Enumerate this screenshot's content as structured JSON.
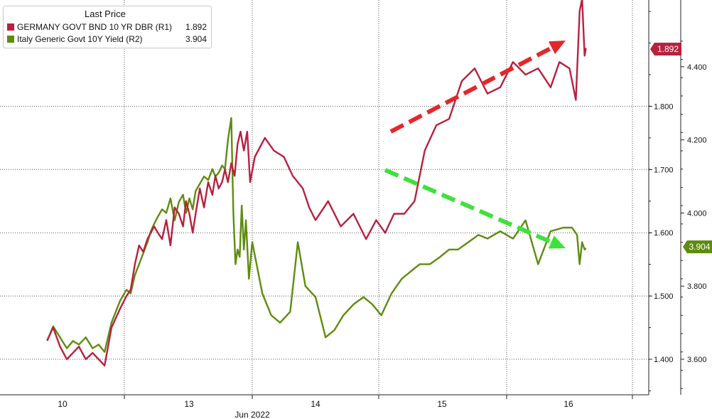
{
  "legend": {
    "title": "Last Price",
    "items": [
      {
        "label": "GERMANY GOVT BND 10 YR DBR  (R1)",
        "value": "1.892",
        "color": "#b8213e"
      },
      {
        "label": "Italy Generic Govt 10Y Yield  (R2)",
        "value": "3.904",
        "color": "#5e8c0f"
      }
    ]
  },
  "chart_data": {
    "type": "line",
    "xlabel": "Jun 2022",
    "x_ticks": [
      "10",
      "13",
      "14",
      "15",
      "16"
    ],
    "grid": true,
    "axes": {
      "R1": {
        "ticks": [
          "1.400",
          "1.500",
          "1.600",
          "1.700",
          "1.800"
        ],
        "range": [
          1.35,
          1.975
        ]
      },
      "R2": {
        "ticks": [
          "3.600",
          "3.800",
          "4.000",
          "4.200",
          "4.400"
        ],
        "range": [
          3.51,
          4.51
        ]
      }
    },
    "series": [
      {
        "name": "GERMANY GOVT BND 10 YR DBR  (R1)",
        "axis": "R1",
        "color": "#b8213e",
        "last_value": "1.892",
        "x": [
          9.55,
          9.62,
          9.7,
          9.78,
          9.85,
          9.92,
          10.0,
          10.08,
          10.15,
          10.22,
          10.3,
          10.4,
          10.5,
          10.6,
          10.7,
          10.8,
          10.9,
          11.0,
          11.08,
          11.16,
          11.25,
          11.35,
          11.45,
          11.55,
          11.65,
          11.75,
          11.85,
          11.92,
          12.0,
          12.08,
          12.15,
          12.25,
          12.35,
          12.45,
          12.55,
          12.62,
          12.7,
          12.78,
          12.85,
          12.92,
          13.0,
          13.08,
          13.15,
          13.22,
          13.3,
          13.38,
          13.45,
          13.52,
          13.6,
          13.67,
          13.75,
          13.82,
          13.9,
          13.95,
          14.0,
          14.1,
          14.2,
          14.3,
          14.4,
          14.48,
          14.55,
          14.62,
          14.7,
          14.78,
          14.86,
          14.95,
          15.05,
          15.15,
          15.25,
          15.35,
          15.45,
          15.55,
          15.65,
          15.75,
          15.85,
          15.92,
          16.0,
          16.05,
          16.08,
          16.1,
          16.12,
          16.13
        ],
        "values": [
          1.43,
          1.45,
          1.42,
          1.4,
          1.41,
          1.42,
          1.4,
          1.41,
          1.4,
          1.39,
          1.45,
          1.48,
          1.5,
          1.51,
          1.55,
          1.58,
          1.57,
          1.59,
          1.6,
          1.61,
          1.6,
          1.59,
          1.62,
          1.58,
          1.64,
          1.63,
          1.61,
          1.65,
          1.63,
          1.6,
          1.63,
          1.67,
          1.64,
          1.68,
          1.66,
          1.69,
          1.67,
          1.68,
          1.7,
          1.68,
          1.71,
          1.69,
          1.74,
          1.76,
          1.73,
          1.76,
          1.68,
          1.72,
          1.75,
          1.73,
          1.72,
          1.69,
          1.67,
          1.64,
          1.62,
          1.65,
          1.61,
          1.63,
          1.59,
          1.62,
          1.6,
          1.63,
          1.63,
          1.65,
          1.73,
          1.77,
          1.78,
          1.84,
          1.86,
          1.82,
          1.83,
          1.87,
          1.85,
          1.86,
          1.83,
          1.87,
          1.86,
          1.81,
          1.95,
          1.97,
          1.88,
          1.892
        ]
      },
      {
        "name": "Italy Generic Govt 10Y Yield  (R2)",
        "axis": "R2",
        "color": "#5e8c0f",
        "last_value": "3.904",
        "x": [
          9.55,
          9.62,
          9.7,
          9.78,
          9.85,
          9.92,
          10.0,
          10.08,
          10.15,
          10.22,
          10.3,
          10.4,
          10.5,
          10.6,
          10.7,
          10.8,
          10.9,
          11.0,
          11.08,
          11.16,
          11.25,
          11.35,
          11.45,
          11.55,
          11.65,
          11.75,
          11.85,
          11.92,
          12.0,
          12.08,
          12.15,
          12.25,
          12.35,
          12.45,
          12.55,
          12.62,
          12.7,
          12.78,
          12.85,
          12.92,
          13.0,
          13.05,
          13.1,
          13.15,
          13.2,
          13.25,
          13.3,
          13.35,
          13.42,
          13.5,
          13.58,
          13.65,
          13.72,
          13.8,
          13.86,
          13.92,
          14.0,
          14.08,
          14.15,
          14.22,
          14.3,
          14.38,
          14.45,
          14.52,
          14.6,
          14.68,
          14.75,
          14.82,
          14.9,
          14.98,
          15.05,
          15.12,
          15.2,
          15.28,
          15.35,
          15.45,
          15.55,
          15.65,
          15.75,
          15.85,
          15.95,
          16.02,
          16.06,
          16.08,
          16.1,
          16.12,
          16.13
        ],
        "values": [
          3.65,
          3.69,
          3.66,
          3.63,
          3.65,
          3.64,
          3.66,
          3.63,
          3.64,
          3.62,
          3.7,
          3.76,
          3.79,
          3.78,
          3.83,
          3.86,
          3.89,
          3.92,
          3.95,
          3.97,
          3.99,
          4.01,
          4.0,
          4.04,
          3.98,
          4.03,
          4.05,
          4.0,
          4.04,
          4.01,
          4.06,
          4.08,
          4.1,
          4.09,
          4.12,
          4.1,
          4.11,
          4.13,
          4.12,
          4.2,
          4.26,
          4.0,
          3.86,
          3.9,
          3.88,
          4.02,
          3.9,
          3.98,
          3.82,
          3.92,
          3.78,
          3.72,
          3.7,
          3.73,
          3.92,
          3.8,
          3.77,
          3.66,
          3.68,
          3.72,
          3.75,
          3.77,
          3.75,
          3.72,
          3.78,
          3.82,
          3.84,
          3.86,
          3.86,
          3.88,
          3.9,
          3.9,
          3.92,
          3.94,
          3.93,
          3.95,
          3.93,
          3.98,
          3.86,
          3.95,
          3.96,
          3.96,
          3.94,
          3.86,
          3.92,
          3.9,
          3.904
        ]
      }
    ]
  }
}
